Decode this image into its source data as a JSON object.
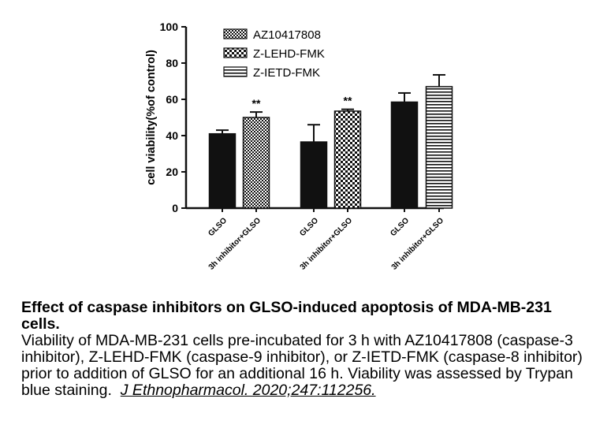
{
  "chart_data": {
    "type": "bar",
    "ylabel": "cell viability(%of control)",
    "ylim": [
      0,
      100
    ],
    "yticks": [
      0,
      20,
      40,
      60,
      80,
      100
    ],
    "grid": false,
    "legend_position": "top-center",
    "categories": [
      "GLSO",
      "3h inhibitor+GLSO",
      "GLSO",
      "3h inhibitor+GLSO",
      "GLSO",
      "3h inhibitor+GLSO"
    ],
    "bars": [
      {
        "category": "GLSO",
        "value": 41,
        "error": 2,
        "pattern": "solid",
        "significance": ""
      },
      {
        "category": "3h inhibitor+GLSO",
        "value": 50,
        "error": 3,
        "pattern": "dots",
        "significance": "**"
      },
      {
        "category": "GLSO",
        "value": 36.5,
        "error": 9.5,
        "pattern": "solid",
        "significance": ""
      },
      {
        "category": "3h inhibitor+GLSO",
        "value": 53.5,
        "error": 1,
        "pattern": "checker",
        "significance": "**"
      },
      {
        "category": "GLSO",
        "value": 58.5,
        "error": 5,
        "pattern": "solid",
        "significance": ""
      },
      {
        "category": "3h inhibitor+GLSO",
        "value": 67,
        "error": 6.5,
        "pattern": "stripes",
        "significance": ""
      }
    ],
    "legend": [
      {
        "label": "AZ10417808",
        "pattern": "dots"
      },
      {
        "label": "Z-LEHD-FMK",
        "pattern": "checker"
      },
      {
        "label": "Z-IETD-FMK",
        "pattern": "stripes"
      }
    ]
  },
  "caption": {
    "title": "Effect of caspase inhibitors on GLSO-induced apoptosis of MDA-MB-231 cells.",
    "body": "Viability of MDA-MB-231 cells pre-incubated for 3 h with AZ10417808 (caspase-3 inhibitor), Z-LEHD-FMK (caspase-9 inhibitor), or Z-IETD-FMK (caspase-8 inhibitor) prior to addition of GLSO for an additional 16 h. Viability was assessed by Trypan blue staining.",
    "citation": "J Ethnopharmacol. 2020;247:112256."
  },
  "colors": {
    "bar_solid": "#111111",
    "pattern_ink": "#111111",
    "pattern_paper": "#ffffff"
  }
}
